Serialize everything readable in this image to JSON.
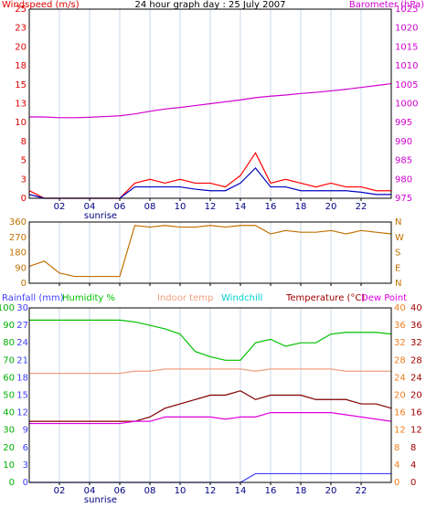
{
  "chart_data": [
    {
      "type": "line",
      "title": "24 hour graph day : 25 July 2007",
      "ylabel": "Windspeed (m/s)",
      "ycolor": "#e00000",
      "y2label": "Barometer (hPa)",
      "y2color": "#d000d0",
      "annotation": "sunrise",
      "x": [
        0,
        1,
        2,
        3,
        4,
        5,
        6,
        7,
        8,
        9,
        10,
        11,
        12,
        13,
        14,
        15,
        16,
        17,
        18,
        19,
        20,
        21,
        22,
        23,
        24
      ],
      "xlim": [
        0,
        24
      ],
      "xticks": [
        {
          "value": 2,
          "label": "02"
        },
        {
          "value": 4,
          "label": "04"
        },
        {
          "value": 6,
          "label": "06"
        },
        {
          "value": 8,
          "label": "08"
        },
        10,
        12,
        14,
        16,
        18,
        20,
        22
      ],
      "ylim": [
        0,
        25
      ],
      "yticks": [
        0,
        {
          "value": 2.5,
          "label": "3"
        },
        5,
        {
          "value": 7.5,
          "label": "8"
        },
        10,
        {
          "value": 12.5,
          "label": "13"
        },
        15,
        {
          "value": 17.5,
          "label": "18"
        },
        20,
        {
          "value": 22.5,
          "label": "23"
        },
        25
      ],
      "y2lim": [
        975,
        1025
      ],
      "y2ticks": [
        975,
        980,
        985,
        990,
        995,
        1000,
        1005,
        1010,
        1015,
        1020,
        1025
      ],
      "grid": true,
      "series": [
        {
          "color": "#d000d0",
          "axis": "y2",
          "values": [
            996.5,
            996.5,
            996.3,
            996.3,
            996.4,
            996.6,
            996.8,
            997.3,
            998,
            998.6,
            999,
            999.5,
            1000,
            1000.5,
            1001,
            1001.6,
            1002,
            1002.3,
            1002.7,
            1003,
            1003.4,
            1003.8,
            1004.3,
            1004.8,
            1005.3
          ]
        },
        {
          "color": "#ff0000",
          "values": [
            1,
            0,
            0,
            0,
            0,
            0,
            0,
            2,
            2.5,
            2,
            2.5,
            2,
            2,
            1.5,
            3,
            6,
            2,
            2.5,
            2,
            1.5,
            2,
            1.5,
            1.5,
            1,
            1
          ]
        },
        {
          "color": "#0000c0",
          "values": [
            0.5,
            0,
            0,
            0,
            0,
            0,
            0,
            1.5,
            1.5,
            1.5,
            1.5,
            1.2,
            1,
            1,
            2,
            4,
            1.5,
            1.5,
            1,
            1,
            1,
            1,
            0.8,
            0.5,
            0.5
          ]
        }
      ]
    },
    {
      "type": "line",
      "ycolor": "#c07000",
      "y2color": "#c07000",
      "x": [
        0,
        1,
        2,
        3,
        4,
        5,
        6,
        7,
        8,
        9,
        10,
        11,
        12,
        13,
        14,
        15,
        16,
        17,
        18,
        19,
        20,
        21,
        22,
        23,
        24
      ],
      "xlim": [
        0,
        24
      ],
      "xticks": [
        2,
        4,
        6,
        8,
        10,
        12,
        14,
        16,
        18,
        20,
        22
      ],
      "xtick_labels": false,
      "ylim": [
        0,
        360
      ],
      "yticks": [
        0,
        90,
        180,
        270,
        360
      ],
      "y2lim": [
        0,
        360
      ],
      "y2ticks": [
        {
          "value": 0,
          "label": "N"
        },
        {
          "value": 90,
          "label": "E"
        },
        {
          "value": 180,
          "label": "S"
        },
        {
          "value": 270,
          "label": "W"
        },
        {
          "value": 360,
          "label": "N"
        }
      ],
      "grid": true,
      "series": [
        {
          "color": "#c07000",
          "values": [
            100,
            130,
            60,
            40,
            40,
            40,
            40,
            340,
            330,
            340,
            330,
            330,
            340,
            330,
            340,
            340,
            290,
            310,
            300,
            300,
            310,
            290,
            310,
            300,
            290
          ]
        }
      ]
    },
    {
      "type": "multiaxis",
      "annotation": "sunrise",
      "x": [
        0,
        1,
        2,
        3,
        4,
        5,
        6,
        7,
        8,
        9,
        10,
        11,
        12,
        13,
        14,
        15,
        16,
        17,
        18,
        19,
        20,
        21,
        22,
        23,
        24
      ],
      "xlim": [
        0,
        24
      ],
      "xticks": [
        {
          "value": 2,
          "label": "02"
        },
        {
          "value": 4,
          "label": "04"
        },
        {
          "value": 6,
          "label": "06"
        },
        {
          "value": 8,
          "label": "08"
        },
        10,
        12,
        14,
        16,
        18,
        20,
        22
      ],
      "grid": true,
      "axes": [
        {
          "color": "#4040ff",
          "lim": [
            0,
            30
          ],
          "ticks": [
            0,
            3,
            6,
            9,
            12,
            15,
            18,
            21,
            24,
            27,
            30
          ]
        },
        {
          "color": "#00b000",
          "lim": [
            0,
            100
          ],
          "ticks": [
            0,
            10,
            20,
            30,
            40,
            50,
            60,
            70,
            80,
            90,
            100
          ]
        },
        {
          "color": "#f08020",
          "lim": [
            0,
            40
          ],
          "ticks": [
            0,
            4,
            8,
            12,
            16,
            20,
            24,
            28,
            32,
            36,
            40
          ]
        },
        {
          "color": "#a00000",
          "lim": [
            0,
            40
          ],
          "ticks": [
            0,
            4,
            8,
            12,
            16,
            20,
            24,
            28,
            32,
            36,
            40
          ]
        }
      ],
      "series": [
        {
          "name": "Rainfall (mm)",
          "color": "#4040ff",
          "axis": 0,
          "values": [
            0,
            0,
            0,
            0,
            0,
            0,
            0,
            0,
            0,
            0,
            0,
            0,
            0,
            0,
            0,
            1.5,
            1.5,
            1.5,
            1.5,
            1.5,
            1.5,
            1.5,
            1.5,
            1.5,
            1.5
          ]
        },
        {
          "name": "Humidity %",
          "color": "#00c000",
          "axis": 1,
          "values": [
            93,
            93,
            93,
            93,
            93,
            93,
            93,
            92,
            90,
            88,
            85,
            75,
            72,
            70,
            70,
            80,
            82,
            78,
            80,
            80,
            85,
            86,
            86,
            86,
            85
          ]
        },
        {
          "name": "Indoor temp",
          "color": "#f0a080",
          "axis": 2,
          "values": [
            25,
            25,
            25,
            25,
            25,
            25,
            25,
            25.5,
            25.5,
            26,
            26,
            26,
            26,
            26,
            26,
            25.5,
            26,
            26,
            26,
            26,
            26,
            25.5,
            25.5,
            25.5,
            25.5
          ]
        },
        {
          "name": "Windchill",
          "color": "#00d0d0",
          "axis": 3,
          "values": [
            14,
            14,
            14,
            14,
            14,
            14,
            14,
            14,
            15,
            17,
            18,
            19,
            20,
            20,
            21,
            19,
            20,
            20,
            20,
            19,
            19,
            19,
            18,
            18,
            17
          ]
        },
        {
          "name": "Temperature (°C)",
          "color": "#a00000",
          "axis": 3,
          "values": [
            14,
            14,
            14,
            14,
            14,
            14,
            14,
            14,
            15,
            17,
            18,
            19,
            20,
            20,
            21,
            19,
            20,
            20,
            20,
            19,
            19,
            19,
            18,
            18,
            17
          ]
        },
        {
          "name": "Dew Point",
          "color": "#e000e0",
          "axis": 3,
          "values": [
            13.5,
            13.5,
            13.5,
            13.5,
            13.5,
            13.5,
            13.5,
            14,
            14,
            15,
            15,
            15,
            15,
            14.5,
            15,
            15,
            16,
            16,
            16,
            16,
            16,
            15.5,
            15,
            14.5,
            14
          ]
        }
      ]
    }
  ]
}
